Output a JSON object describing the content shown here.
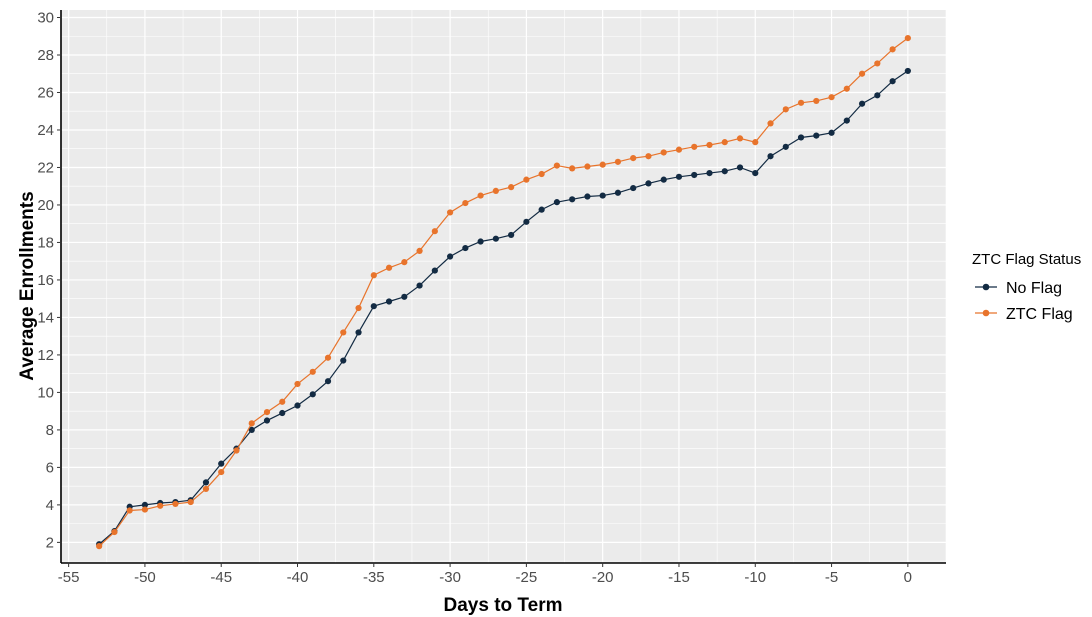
{
  "chart_data": {
    "type": "line",
    "xlabel": "Days to Term",
    "ylabel": "Average Enrollments",
    "xlim": [
      -55.5,
      2.5
    ],
    "ylim": [
      0.9,
      30.4
    ],
    "x_ticks": [
      -55,
      -50,
      -45,
      -40,
      -35,
      -30,
      -25,
      -20,
      -15,
      -10,
      -5,
      0
    ],
    "y_ticks": [
      2,
      4,
      6,
      8,
      10,
      12,
      14,
      16,
      18,
      20,
      22,
      24,
      26,
      28,
      30
    ],
    "x_tick_labels": [
      "-55",
      "-50",
      "-45",
      "-40",
      "-35",
      "-30",
      "-25",
      "-20",
      "-15",
      "-10",
      "-5",
      "0"
    ],
    "y_tick_labels": [
      "2",
      "4",
      "6",
      "8",
      "10",
      "12",
      "14",
      "16",
      "18",
      "20",
      "22",
      "24",
      "26",
      "28",
      "30"
    ],
    "grid": true,
    "legend": {
      "title": "ZTC Flag Status",
      "position": "right"
    },
    "x": [
      -53,
      -52,
      -51,
      -50,
      -49,
      -48,
      -47,
      -46,
      -45,
      -44,
      -43,
      -42,
      -41,
      -40,
      -39,
      -38,
      -37,
      -36,
      -35,
      -34,
      -33,
      -32,
      -31,
      -30,
      -29,
      -28,
      -27,
      -26,
      -25,
      -24,
      -23,
      -22,
      -21,
      -20,
      -19,
      -18,
      -17,
      -16,
      -15,
      -14,
      -13,
      -12,
      -11,
      -10,
      -9,
      -8,
      -7,
      -6,
      -5,
      -4,
      -3,
      -2,
      -1,
      0
    ],
    "series": [
      {
        "name": "No Flag",
        "color": "#132b43",
        "values": [
          1.9,
          2.6,
          3.9,
          4.0,
          4.1,
          4.15,
          4.25,
          5.2,
          6.2,
          7.0,
          8.0,
          8.5,
          8.9,
          9.3,
          9.9,
          10.6,
          11.7,
          13.2,
          14.6,
          14.85,
          15.1,
          15.7,
          16.5,
          17.25,
          17.7,
          18.05,
          18.2,
          18.4,
          19.1,
          19.75,
          20.15,
          20.3,
          20.45,
          20.5,
          20.65,
          20.9,
          21.15,
          21.35,
          21.5,
          21.6,
          21.7,
          21.8,
          22.0,
          21.7,
          22.6,
          23.1,
          23.6,
          23.7,
          23.85,
          24.5,
          25.4,
          25.85,
          26.6,
          27.15
        ]
      },
      {
        "name": "ZTC Flag",
        "color": "#e8742c",
        "values": [
          1.8,
          2.55,
          3.7,
          3.75,
          3.95,
          4.05,
          4.15,
          4.85,
          5.75,
          6.9,
          8.35,
          8.95,
          9.5,
          10.45,
          11.1,
          11.85,
          13.2,
          14.5,
          16.25,
          16.65,
          16.95,
          17.55,
          18.6,
          19.6,
          20.1,
          20.5,
          20.75,
          20.95,
          21.35,
          21.65,
          22.1,
          21.95,
          22.05,
          22.15,
          22.3,
          22.5,
          22.6,
          22.8,
          22.95,
          23.1,
          23.2,
          23.35,
          23.55,
          23.35,
          24.35,
          25.1,
          25.45,
          25.55,
          25.75,
          26.2,
          27.0,
          27.55,
          28.3,
          28.9
        ]
      }
    ]
  }
}
